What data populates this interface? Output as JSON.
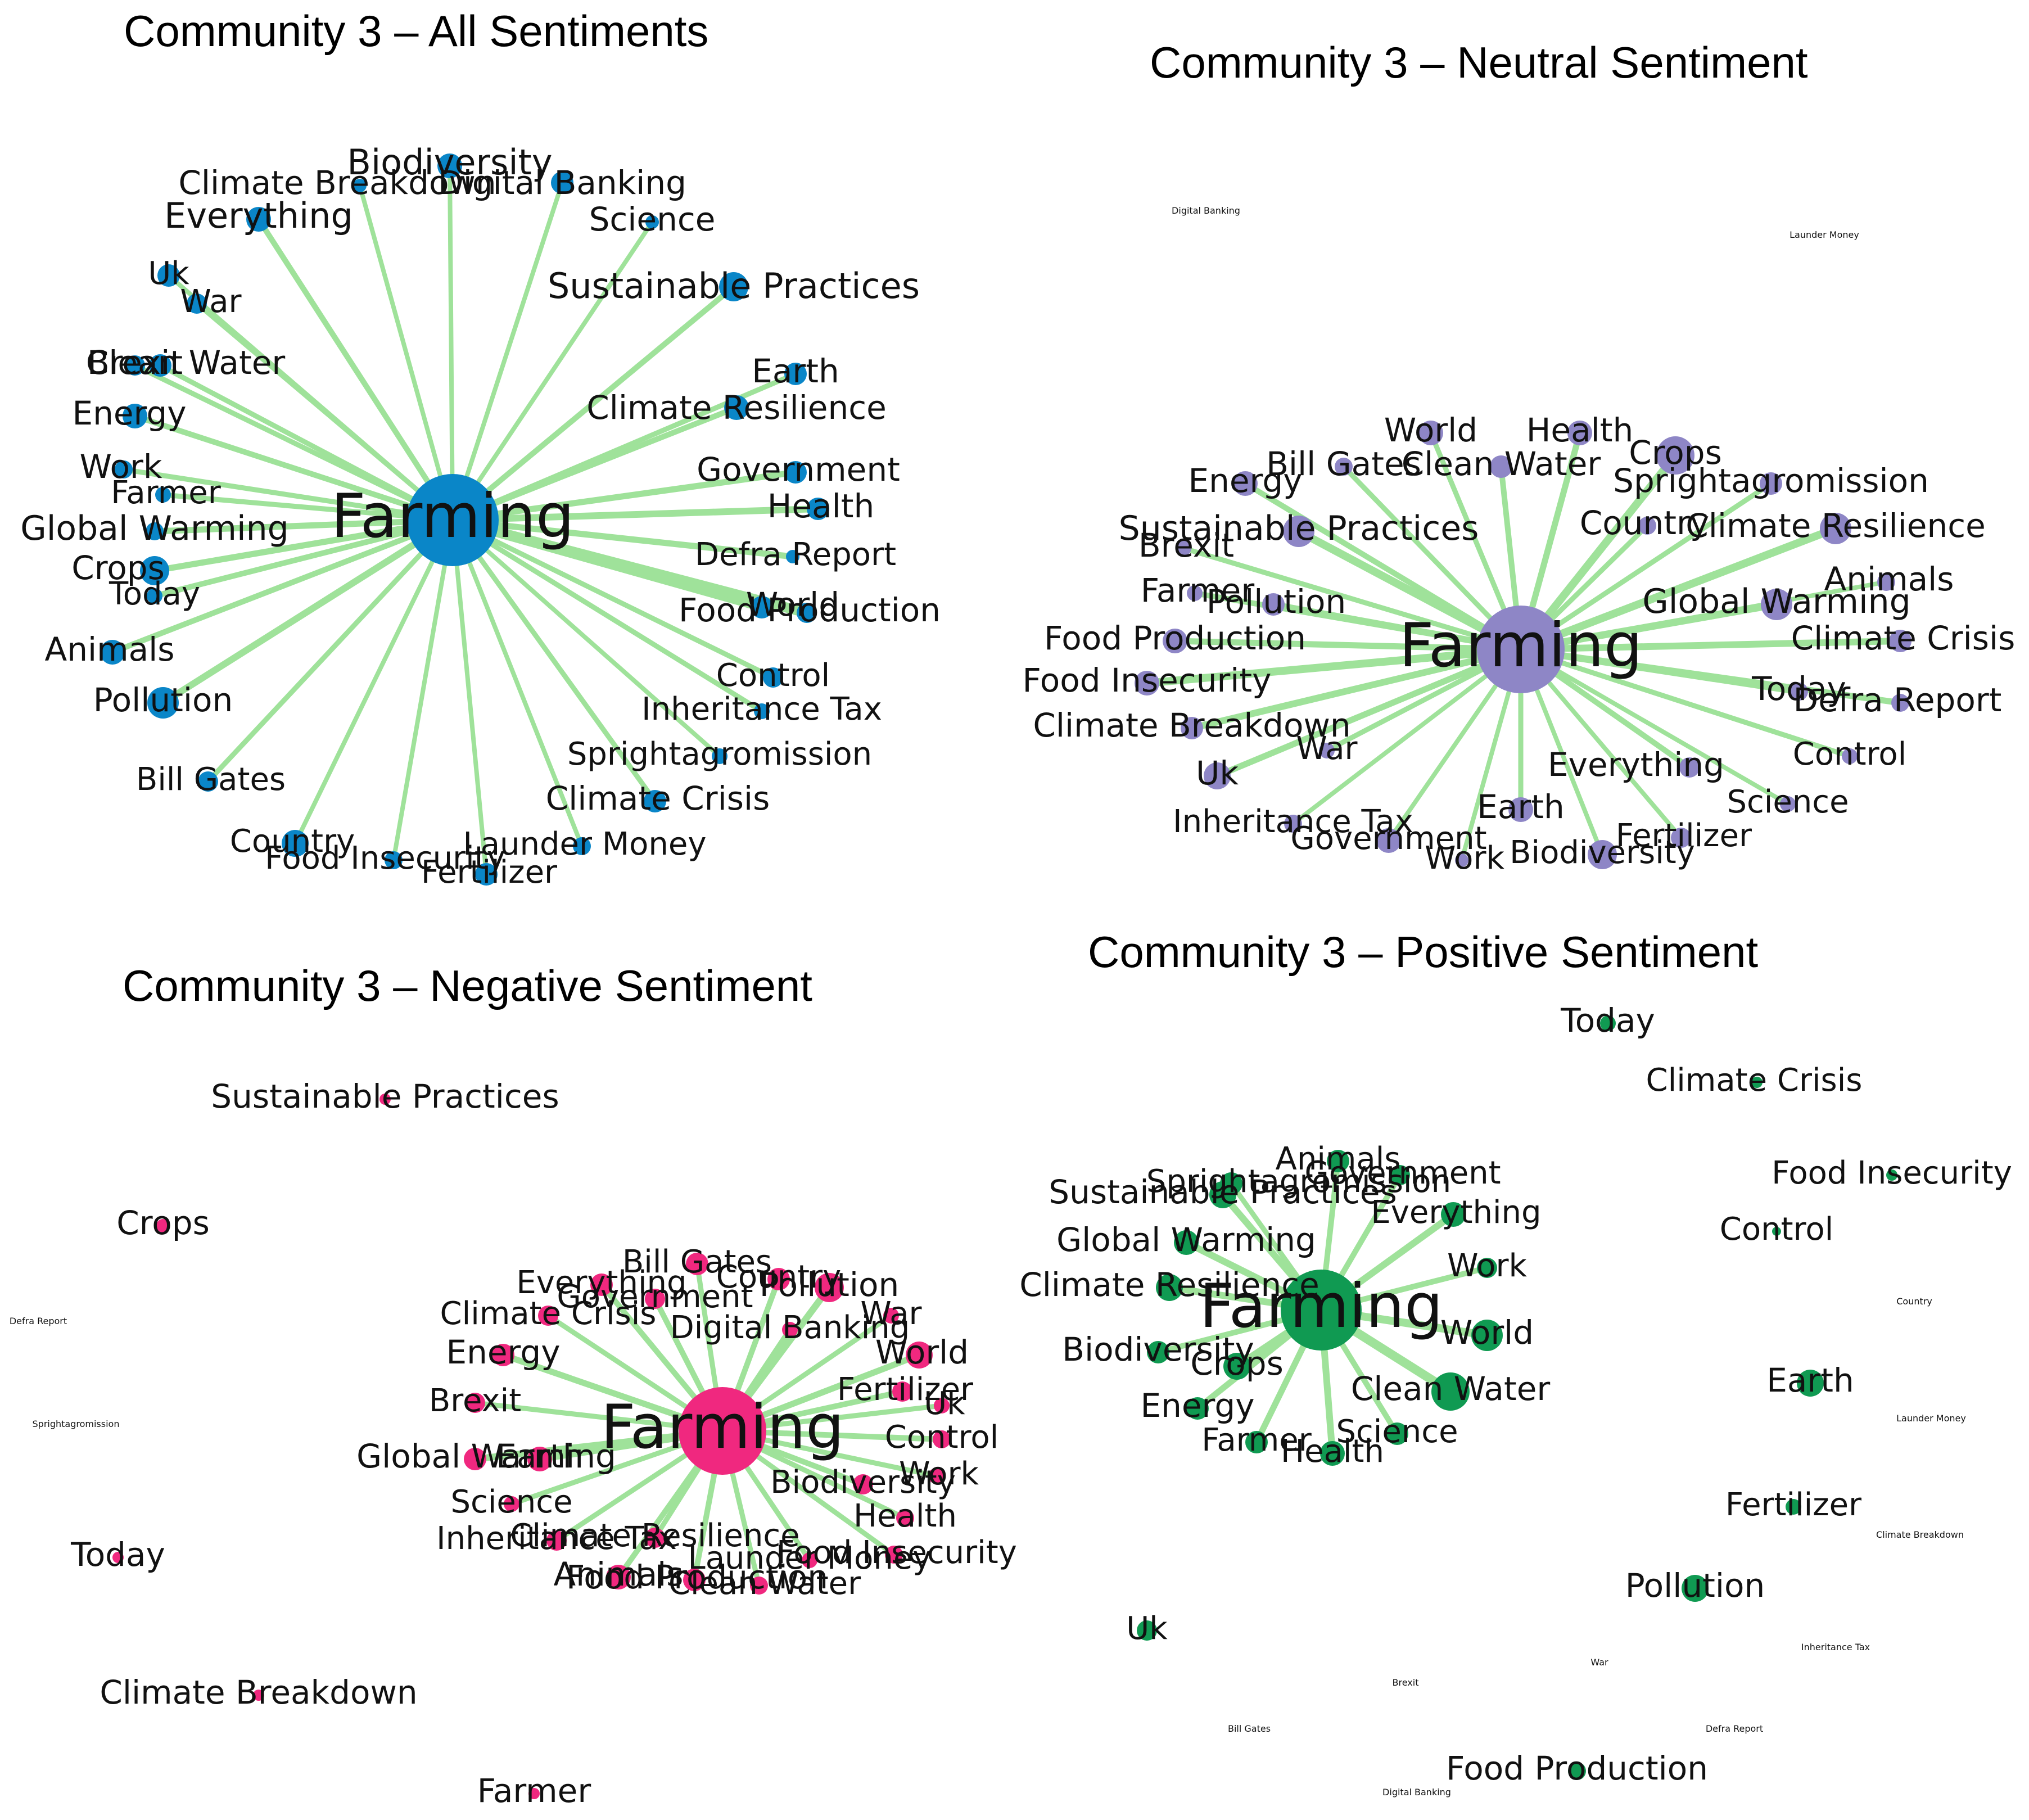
{
  "colors": {
    "edge": "#9fe29a",
    "all": "#0a86c8",
    "neutral": "#8e86c6",
    "negative": "#f0287f",
    "positive": "#109a52"
  },
  "panels": [
    {
      "key": "all",
      "title": "Community 3 – All Sentiments",
      "hub": "Farming",
      "nodes": [
        {
          "label": "Biodiversity"
        },
        {
          "label": "Climate Breakdown"
        },
        {
          "label": "Digital Banking"
        },
        {
          "label": "Everything"
        },
        {
          "label": "Science"
        },
        {
          "label": "Uk"
        },
        {
          "label": "War"
        },
        {
          "label": "Sustainable Practices"
        },
        {
          "label": "Brexit"
        },
        {
          "label": "Clean Water"
        },
        {
          "label": "Earth"
        },
        {
          "label": "Climate Resilience"
        },
        {
          "label": "Energy"
        },
        {
          "label": "Government"
        },
        {
          "label": "Work"
        },
        {
          "label": "Farmer"
        },
        {
          "label": "Health"
        },
        {
          "label": "Global Warming"
        },
        {
          "label": "Defra Report"
        },
        {
          "label": "Crops"
        },
        {
          "label": "Today"
        },
        {
          "label": "World"
        },
        {
          "label": "Food Production"
        },
        {
          "label": "Animals"
        },
        {
          "label": "Control"
        },
        {
          "label": "Pollution"
        },
        {
          "label": "Inheritance Tax"
        },
        {
          "label": "Sprightagromission"
        },
        {
          "label": "Bill Gates"
        },
        {
          "label": "Climate Crisis"
        },
        {
          "label": "Country"
        },
        {
          "label": "Launder Money"
        },
        {
          "label": "Food Insecurity"
        },
        {
          "label": "Fertilizer"
        }
      ]
    },
    {
      "key": "neutral",
      "title": "Community 3 – Neutral Sentiment",
      "hub": "Farming",
      "nodes": [
        {
          "label": "Digital Banking"
        },
        {
          "label": "Launder Money"
        },
        {
          "label": "World"
        },
        {
          "label": "Health"
        },
        {
          "label": "Bill Gates"
        },
        {
          "label": "Clean Water"
        },
        {
          "label": "Crops"
        },
        {
          "label": "Energy"
        },
        {
          "label": "Sprightagromission"
        },
        {
          "label": "Sustainable Practices"
        },
        {
          "label": "Country"
        },
        {
          "label": "Climate Resilience"
        },
        {
          "label": "Brexit"
        },
        {
          "label": "Animals"
        },
        {
          "label": "Farmer"
        },
        {
          "label": "Pollution"
        },
        {
          "label": "Global Warming"
        },
        {
          "label": "Food Production"
        },
        {
          "label": "Climate Crisis"
        },
        {
          "label": "Food Insecurity"
        },
        {
          "label": "Today"
        },
        {
          "label": "Defra Report"
        },
        {
          "label": "Climate Breakdown"
        },
        {
          "label": "War"
        },
        {
          "label": "Control"
        },
        {
          "label": "Everything"
        },
        {
          "label": "Uk"
        },
        {
          "label": "Science"
        },
        {
          "label": "Earth"
        },
        {
          "label": "Inheritance Tax"
        },
        {
          "label": "Fertilizer"
        },
        {
          "label": "Government"
        },
        {
          "label": "Biodiversity"
        },
        {
          "label": "Work"
        }
      ]
    },
    {
      "key": "negative",
      "title": "Community 3 – Negative Sentiment",
      "hub": "Farming",
      "nodes": [
        {
          "label": "Sustainable Practices"
        },
        {
          "label": "Crops"
        },
        {
          "label": "Defra Report"
        },
        {
          "label": "Sprightagromission"
        },
        {
          "label": "Today"
        },
        {
          "label": "Climate Breakdown"
        },
        {
          "label": "Farmer"
        },
        {
          "label": "Bill Gates"
        },
        {
          "label": "Everything"
        },
        {
          "label": "Country"
        },
        {
          "label": "Government"
        },
        {
          "label": "Pollution"
        },
        {
          "label": "Climate Crisis"
        },
        {
          "label": "War"
        },
        {
          "label": "Digital Banking"
        },
        {
          "label": "Energy"
        },
        {
          "label": "World"
        },
        {
          "label": "Brexit"
        },
        {
          "label": "Fertilizer"
        },
        {
          "label": "Uk"
        },
        {
          "label": "Global Warming"
        },
        {
          "label": "Earth"
        },
        {
          "label": "Control"
        },
        {
          "label": "Biodiversity"
        },
        {
          "label": "Work"
        },
        {
          "label": "Science"
        },
        {
          "label": "Health"
        },
        {
          "label": "Inheritance Tax"
        },
        {
          "label": "Climate Resilience"
        },
        {
          "label": "Food Insecurity"
        },
        {
          "label": "Launder Money"
        },
        {
          "label": "Animals"
        },
        {
          "label": "Food Production"
        },
        {
          "label": "Clean Water"
        }
      ]
    },
    {
      "key": "positive",
      "title": "Community 3 – Positive Sentiment",
      "hub": "Farming",
      "nodes": [
        {
          "label": "Today"
        },
        {
          "label": "Climate Crisis"
        },
        {
          "label": "Food Insecurity"
        },
        {
          "label": "Control"
        },
        {
          "label": "Country"
        },
        {
          "label": "Earth"
        },
        {
          "label": "Launder Money"
        },
        {
          "label": "Fertilizer"
        },
        {
          "label": "Climate Breakdown"
        },
        {
          "label": "Pollution"
        },
        {
          "label": "Inheritance Tax"
        },
        {
          "label": "War"
        },
        {
          "label": "Brexit"
        },
        {
          "label": "Bill Gates"
        },
        {
          "label": "Defra Report"
        },
        {
          "label": "Digital Banking"
        },
        {
          "label": "Uk"
        },
        {
          "label": "Food Production"
        },
        {
          "label": "Sprightagromission"
        },
        {
          "label": "Animals"
        },
        {
          "label": "Government"
        },
        {
          "label": "Sustainable Practices"
        },
        {
          "label": "Everything"
        },
        {
          "label": "Global Warming"
        },
        {
          "label": "Work"
        },
        {
          "label": "Climate Resilience"
        },
        {
          "label": "World"
        },
        {
          "label": "Biodiversity"
        },
        {
          "label": "Crops"
        },
        {
          "label": "Clean Water"
        },
        {
          "label": "Energy"
        },
        {
          "label": "Farmer"
        },
        {
          "label": "Science"
        },
        {
          "label": "Health"
        }
      ]
    }
  ]
}
